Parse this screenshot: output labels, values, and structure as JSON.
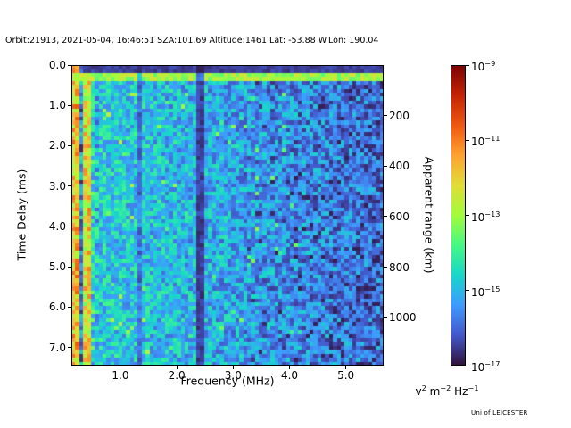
{
  "footer": {
    "credit": "Uni of LEICESTER"
  },
  "chart_data": {
    "type": "heatmap",
    "title": "Orbit:21913, 2021-05-04, 16:46:51 SZA:101.69 Altitude:1461 Lat: -53.88 W.Lon: 190.04",
    "xlabel": "Frequency (MHz)",
    "ylabel": "Time Delay (ms)",
    "ylabel_right": "Apparent range (km)",
    "xlim": [
      0.13,
      5.67
    ],
    "ylim": [
      0.0,
      7.45
    ],
    "ylim_right": [
      0,
      1190
    ],
    "grid_on": false,
    "x_ticks": [
      {
        "value": 1.0,
        "label": "1.0"
      },
      {
        "value": 2.0,
        "label": "2.0"
      },
      {
        "value": 3.0,
        "label": "3.0"
      },
      {
        "value": 4.0,
        "label": "4.0"
      },
      {
        "value": 5.0,
        "label": "5.0"
      }
    ],
    "y_ticks": [
      {
        "value": 0.0,
        "label": "0.0"
      },
      {
        "value": 1.0,
        "label": "1.0"
      },
      {
        "value": 2.0,
        "label": "2.0"
      },
      {
        "value": 3.0,
        "label": "3.0"
      },
      {
        "value": 4.0,
        "label": "4.0"
      },
      {
        "value": 5.0,
        "label": "5.0"
      },
      {
        "value": 6.0,
        "label": "6.0"
      },
      {
        "value": 7.0,
        "label": "7.0"
      }
    ],
    "y_ticks_right": [
      {
        "value": 200,
        "label": "200"
      },
      {
        "value": 400,
        "label": "400"
      },
      {
        "value": 600,
        "label": "600"
      },
      {
        "value": 800,
        "label": "800"
      },
      {
        "value": 1000,
        "label": "1000"
      }
    ],
    "colorbar": {
      "scale": "log",
      "exp_top": -9,
      "exp_bottom": -17,
      "ticks": [
        {
          "exp": -9,
          "sup": "−9"
        },
        {
          "exp": -11,
          "sup": "−11"
        },
        {
          "exp": -13,
          "sup": "−13"
        },
        {
          "exp": -15,
          "sup": "−15"
        },
        {
          "exp": -17,
          "sup": "−17"
        }
      ],
      "unit_parts": [
        [
          "v",
          "2"
        ],
        [
          "m",
          "−2"
        ],
        [
          "Hz",
          "−1"
        ]
      ]
    },
    "colormap": {
      "name": "turbo",
      "stops": [
        "#30123b",
        "#4358cb",
        "#3e9bfe",
        "#18d7cb",
        "#46f884",
        "#a2fc3c",
        "#e1dd37",
        "#fea331",
        "#ef5911",
        "#c42503",
        "#7a0403"
      ]
    },
    "grid": {
      "cols": 80,
      "rows": 76,
      "seed": 12
    },
    "features": {
      "top_dark_delay_ms": 0.15,
      "surface_echo_delay_ms": [
        0.18,
        0.38
      ],
      "left_streaks_below_mhz": 0.62,
      "attenuation_bands_mhz": [
        2.4,
        1.32
      ],
      "band_widths_mhz": [
        0.09,
        0.05
      ],
      "band_strengths": [
        0.28,
        0.55
      ],
      "noise_base": 0.3,
      "noise_slope": -0.16,
      "noise_amp": 0.24,
      "note": "Ionogram: signal intensity (log scale 1e-17 to 1e-9) vs frequency and time delay; bright cyan-green surface echo line near 0.2-0.3 ms delay across all frequencies; strong vertical plasma-line striping below ~0.6 MHz; dark attenuation bands near 1.3 and 2.4 MHz; background speckle noise dims toward higher frequency"
    }
  }
}
